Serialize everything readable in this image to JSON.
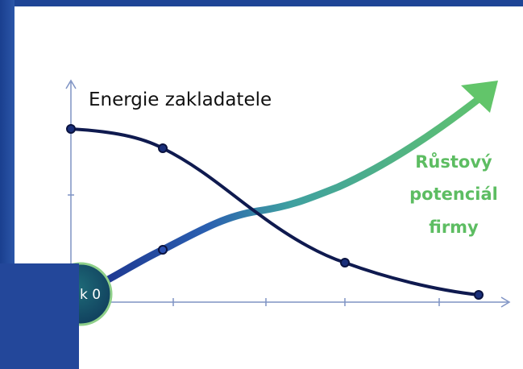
{
  "title": "Energie zakladatele",
  "growth_label": [
    "Růstový",
    "potenciál",
    "firmy"
  ],
  "start_label": "k 0"
}
